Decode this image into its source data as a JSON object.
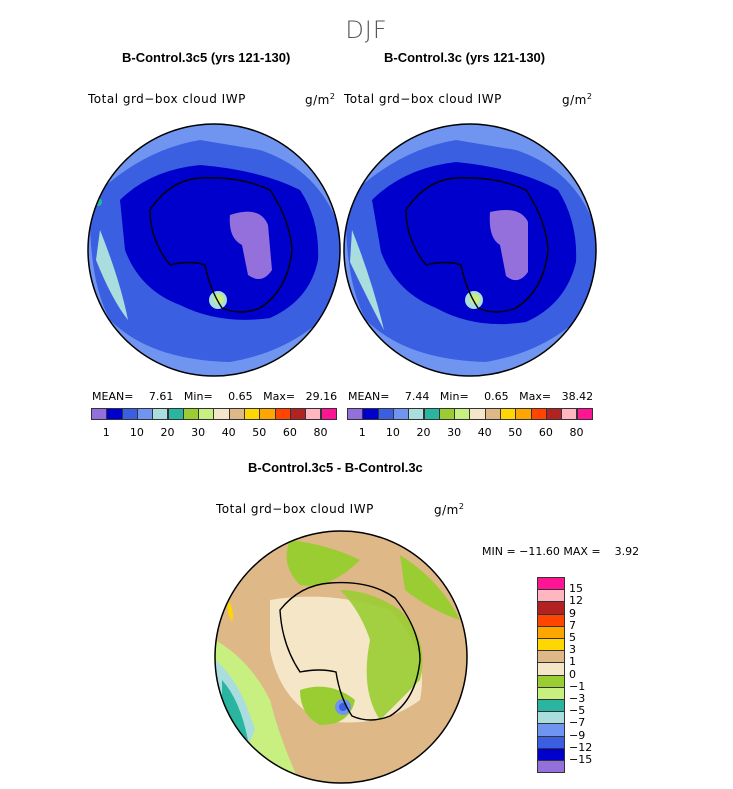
{
  "season": "DJF",
  "units_label": "g/m",
  "units_sup": "2",
  "colors": {
    "palette_top": [
      "#9370db",
      "#0000cd",
      "#3a5fe0",
      "#7095f0",
      "#aadddd",
      "#2ab5a0",
      "#9acd32",
      "#c8f080",
      "#f5e6c8",
      "#deb887",
      "#ffd700",
      "#ffa500",
      "#ff4500",
      "#b22222",
      "#ffb6c1",
      "#ff1493"
    ],
    "palette_diff": [
      "#9370db",
      "#0000cd",
      "#3a5fe0",
      "#7095f0",
      "#aadddd",
      "#2ab5a0",
      "#c8f080",
      "#9acd32",
      "#f5e6c8",
      "#deb887",
      "#ffd700",
      "#ffa500",
      "#ff4500",
      "#b22222",
      "#ffb6c1",
      "#ff1493"
    ]
  },
  "chart_data": [
    {
      "type": "heatmap",
      "title": "B-Control.3c5 (yrs 121-130)",
      "variable": "Total grd−box cloud IWP",
      "projection": "south polar stereographic",
      "stats": {
        "mean_label": "MEAN=",
        "mean": "7.61",
        "min_label": "Min=",
        "min": "0.65",
        "max_label": "Max=",
        "max": "29.16"
      },
      "colorbar_ticks": [
        "1",
        "10",
        "20",
        "30",
        "40",
        "50",
        "60",
        "80"
      ]
    },
    {
      "type": "heatmap",
      "title": "B-Control.3c (yrs 121-130)",
      "variable": "Total grd−box cloud IWP",
      "projection": "south polar stereographic",
      "stats": {
        "mean_label": "MEAN=",
        "mean": "7.44",
        "min_label": "Min=",
        "min": "0.65",
        "max_label": "Max=",
        "max": "38.42"
      },
      "colorbar_ticks": [
        "1",
        "10",
        "20",
        "30",
        "40",
        "50",
        "60",
        "80"
      ]
    },
    {
      "type": "heatmap",
      "title": "B-Control.3c5 - B-Control.3c",
      "variable": "Total grd−box cloud IWP",
      "projection": "south polar stereographic",
      "stats": {
        "text": "MIN = −11.60 MAX =    3.92"
      },
      "colorbar_ticks": [
        "15",
        "12",
        "9",
        "7",
        "5",
        "3",
        "1",
        "0",
        "−1",
        "−3",
        "−5",
        "−7",
        "−9",
        "−12",
        "−15"
      ]
    }
  ]
}
